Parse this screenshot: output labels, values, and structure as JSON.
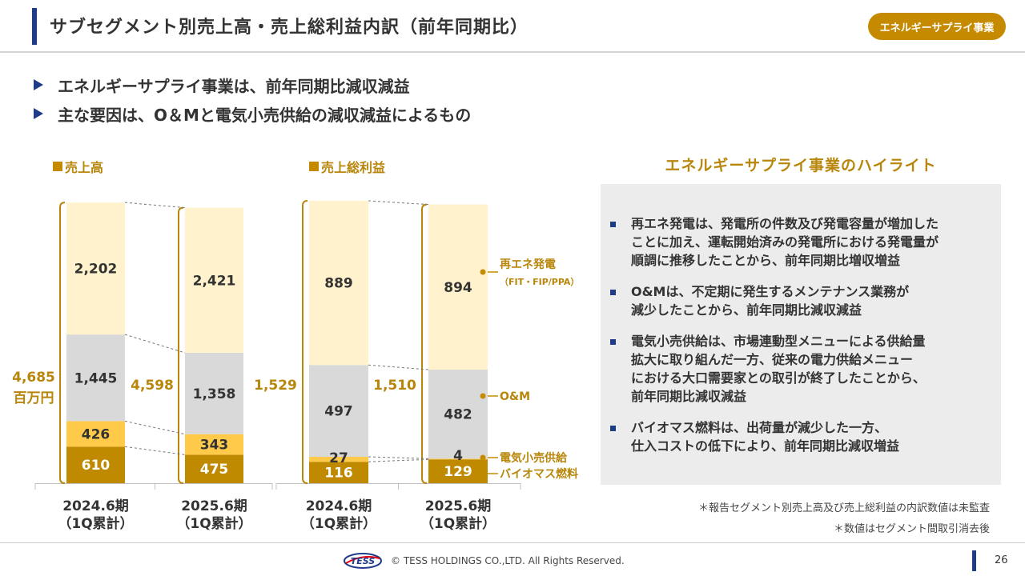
{
  "header": {
    "title": "サブセグメント別売上高・売上総利益内訳（前年同期比）",
    "badge": "エネルギーサプライ事業"
  },
  "bullets": [
    "エネルギーサプライ事業は、前年同期比減収減益",
    "主な要因は、O＆Mと電気小売供給の減収減益によるもの"
  ],
  "chart_data": [
    {
      "type": "bar",
      "stacked": true,
      "title": "売上高",
      "categories": [
        "2024.6期\n（1Q累計）",
        "2025.6期\n（1Q累計）"
      ],
      "series": [
        {
          "name": "バイオマス燃料",
          "values": [
            610,
            475
          ]
        },
        {
          "name": "電気小売供給",
          "values": [
            426,
            343
          ]
        },
        {
          "name": "O&M",
          "values": [
            1445,
            1358
          ]
        },
        {
          "name": "再エネ発電（FIT・FIP/PPA）",
          "values": [
            2202,
            2421
          ]
        }
      ],
      "value_labels": [
        [
          "610",
          "426",
          "1,445",
          "2,202"
        ],
        [
          "475",
          "343",
          "1,358",
          "2,421"
        ]
      ],
      "totals": [
        "4,685",
        "4,598"
      ],
      "unit": "百万円",
      "colors": [
        "#c08a00",
        "#ffc94a",
        "#d9d9d9",
        "#fff2cc"
      ]
    },
    {
      "type": "bar",
      "stacked": true,
      "title": "売上総利益",
      "categories": [
        "2024.6期\n（1Q累計）",
        "2025.6期\n（1Q累計）"
      ],
      "series": [
        {
          "name": "バイオマス燃料",
          "values": [
            116,
            129
          ]
        },
        {
          "name": "電気小売供給",
          "values": [
            27,
            4
          ]
        },
        {
          "name": "O&M",
          "values": [
            497,
            482
          ]
        },
        {
          "name": "再エネ発電（FIT・FIP/PPA）",
          "values": [
            889,
            894
          ]
        }
      ],
      "value_labels": [
        [
          "116",
          "27",
          "497",
          "889"
        ],
        [
          "129",
          "4",
          "482",
          "894"
        ]
      ],
      "totals": [
        "1,529",
        "1,510"
      ],
      "colors": [
        "#c08a00",
        "#ffc94a",
        "#d9d9d9",
        "#fff2cc"
      ]
    }
  ],
  "legend": {
    "renewable_line1": "再エネ発電",
    "renewable_line2": "（FIT・FIP/PPA）",
    "om": "O&M",
    "retail": "電気小売供給",
    "biomass": "バイオマス燃料"
  },
  "highlights": {
    "title": "エネルギーサプライ事業のハイライト",
    "items": [
      "再エネ発電は、発電所の件数及び発電容量が増加した\nことに加え、運転開始済みの発電所における発電量が\n順調に推移したことから、前年同期比増収増益",
      "O&Mは、不定期に発生するメンテナンス業務が\n減少したことから、前年同期比減収減益",
      "電気小売供給は、市場連動型メニューによる供給量\n拡大に取り組んだ一方、従来の電力供給メニュー\nにおける大口需要家との取引が終了したことから、\n前年同期比減収減益",
      "バイオマス燃料は、出荷量が減少した一方、\n仕入コストの低下により、前年同期比減収増益"
    ]
  },
  "notes": [
    "＊報告セグメント別売上高及び売上総利益の内訳数値は未監査",
    "＊数値はセグメント間取引消去後"
  ],
  "footer": {
    "logo_text": "TESS",
    "copyright": "© TESS HOLDINGS CO.,LTD. All Rights Reserved.",
    "page_number": "26"
  },
  "colors": {
    "accent_blue": "#1f3c88",
    "accent_gold": "#c68a00"
  }
}
